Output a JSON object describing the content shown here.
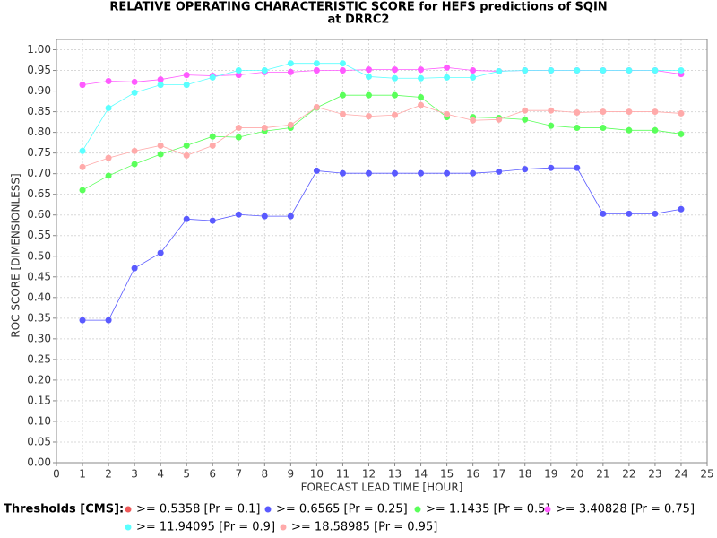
{
  "chart_data": {
    "type": "line",
    "title": "RELATIVE OPERATING CHARACTERISTIC SCORE for HEFS predictions of SQIN",
    "subtitle": "at DRRC2",
    "xlabel": "FORECAST LEAD TIME [HOUR]",
    "ylabel": "ROC SCORE [DIMENSIONLESS]",
    "legend_title": "Thresholds [CMS]:",
    "x": [
      1,
      2,
      3,
      4,
      5,
      6,
      7,
      8,
      9,
      10,
      11,
      12,
      13,
      14,
      15,
      16,
      17,
      18,
      19,
      20,
      21,
      22,
      23,
      24
    ],
    "series": [
      {
        "name": ">= 0.5358 [Pr = 0.1]",
        "color": "#ef5a5a",
        "values": [
          null,
          null,
          null,
          null,
          null,
          null,
          null,
          null,
          null,
          null,
          null,
          null,
          null,
          null,
          null,
          null,
          null,
          null,
          null,
          null,
          null,
          null,
          null,
          null
        ]
      },
      {
        "name": ">= 0.6565 [Pr = 0.25]",
        "color": "#5a5aff",
        "values": [
          0.345,
          0.345,
          0.471,
          0.508,
          0.59,
          0.586,
          0.601,
          0.597,
          0.597,
          0.707,
          0.701,
          0.701,
          0.701,
          0.701,
          0.701,
          0.701,
          0.705,
          0.711,
          0.714,
          0.714,
          0.603,
          0.603,
          0.603,
          0.614
        ]
      },
      {
        "name": ">= 1.1435 [Pr = 0.5]",
        "color": "#5aff5a",
        "values": [
          0.66,
          0.695,
          0.723,
          0.747,
          0.768,
          0.79,
          0.788,
          0.803,
          0.811,
          0.86,
          0.89,
          0.89,
          0.89,
          0.885,
          0.837,
          0.837,
          0.835,
          0.831,
          0.816,
          0.811,
          0.811,
          0.805,
          0.805,
          0.796
        ]
      },
      {
        "name": ">= 3.40828 [Pr = 0.75]",
        "color": "#ff5aff",
        "values": [
          0.915,
          0.924,
          0.922,
          0.928,
          0.939,
          0.937,
          0.939,
          0.946,
          0.946,
          0.95,
          0.95,
          0.952,
          0.952,
          0.952,
          0.957,
          0.95,
          0.948,
          0.95,
          0.95,
          0.95,
          0.95,
          0.95,
          0.95,
          0.941
        ]
      },
      {
        "name": ">= 11.94095 [Pr = 0.9]",
        "color": "#5affff",
        "values": [
          0.755,
          0.859,
          0.896,
          0.915,
          0.915,
          0.933,
          0.95,
          0.95,
          0.967,
          0.967,
          0.967,
          0.935,
          0.931,
          0.931,
          0.933,
          0.933,
          0.948,
          0.95,
          0.95,
          0.95,
          0.95,
          0.95,
          0.95,
          0.95
        ]
      },
      {
        "name": ">= 18.58985 [Pr = 0.95]",
        "color": "#ffaaaa",
        "values": [
          0.716,
          0.738,
          0.755,
          0.768,
          0.744,
          0.768,
          0.811,
          0.811,
          0.818,
          0.861,
          0.844,
          0.839,
          0.842,
          0.866,
          0.844,
          0.829,
          0.831,
          0.853,
          0.853,
          0.848,
          0.85,
          0.85,
          0.85,
          0.846
        ]
      }
    ],
    "xlim": [
      0,
      25
    ],
    "xticks": [
      0,
      1,
      2,
      3,
      4,
      5,
      6,
      7,
      8,
      9,
      10,
      11,
      12,
      13,
      14,
      15,
      16,
      17,
      18,
      19,
      20,
      21,
      22,
      23,
      24,
      25
    ],
    "ylim": [
      0,
      1.025
    ],
    "yticks": [
      {
        "value": 0,
        "label": "0.00"
      },
      {
        "value": 0.05,
        "label": "0.05"
      },
      {
        "value": 0.1,
        "label": "0.10"
      },
      {
        "value": 0.15,
        "label": "0.15"
      },
      {
        "value": 0.2,
        "label": "0.20"
      },
      {
        "value": 0.25,
        "label": "0.25"
      },
      {
        "value": 0.3,
        "label": "0.30"
      },
      {
        "value": 0.35,
        "label": "0.35"
      },
      {
        "value": 0.4,
        "label": "0.40"
      },
      {
        "value": 0.45,
        "label": "0.45"
      },
      {
        "value": 0.5,
        "label": "0.50"
      },
      {
        "value": 0.55,
        "label": "0.55"
      },
      {
        "value": 0.6,
        "label": "0.60"
      },
      {
        "value": 0.65,
        "label": "0.65"
      },
      {
        "value": 0.7,
        "label": "0.70"
      },
      {
        "value": 0.75,
        "label": "0.75"
      },
      {
        "value": 0.8,
        "label": "0.80"
      },
      {
        "value": 0.85,
        "label": "0.85"
      },
      {
        "value": 0.9,
        "label": "0.90"
      },
      {
        "value": 0.95,
        "label": "0.95"
      },
      {
        "value": 1,
        "label": "1.00"
      }
    ],
    "grid": true
  }
}
